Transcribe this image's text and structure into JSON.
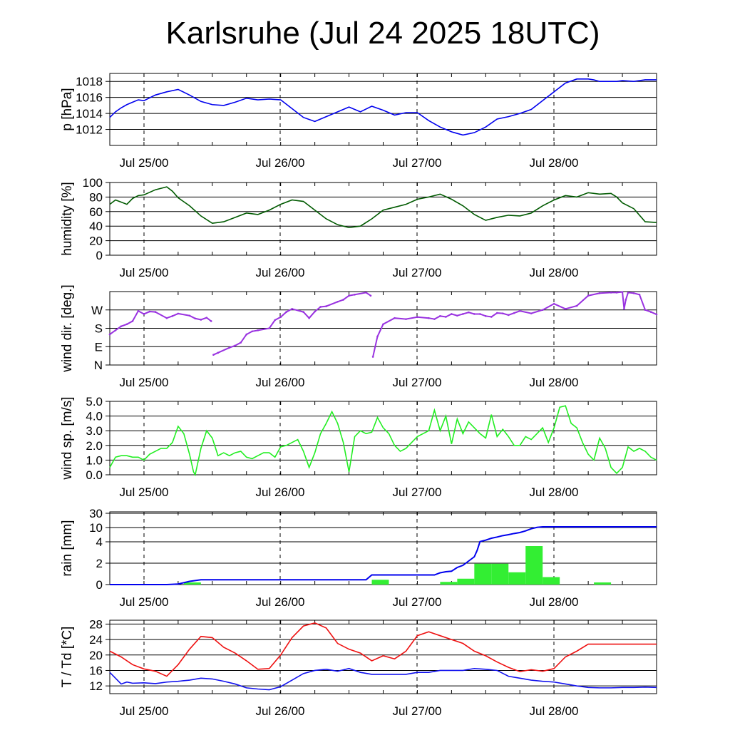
{
  "title": "Karlsruhe (Jul 24 2025 18UTC)",
  "chart_data": [
    {
      "type": "line",
      "ylabel": "p [hPa]",
      "yticks": [
        "1012",
        "1014",
        "1016",
        "1018"
      ],
      "ylim": [
        1010,
        1019
      ],
      "xticks": [
        "Jul 25/00",
        "Jul 26/00",
        "Jul 27/00",
        "Jul 28/00"
      ],
      "xlim_hours": [
        0,
        96
      ],
      "grid": "horizontal solid, vertical dashed at midnight",
      "series": [
        {
          "color": "#0000ee",
          "x_hours": [
            0,
            1,
            2,
            3,
            4,
            5,
            6,
            8,
            10,
            12,
            14,
            16,
            18,
            20,
            22,
            24,
            26,
            28,
            30,
            32,
            34,
            36,
            38,
            40,
            42,
            44,
            46,
            48,
            50,
            52,
            54,
            56,
            58,
            60,
            62,
            64,
            66,
            68,
            70,
            72,
            74,
            76,
            78,
            80,
            82,
            84,
            85,
            86,
            87,
            88,
            89,
            90,
            92,
            94,
            96
          ],
          "values": [
            1013.5,
            1014.2,
            1014.7,
            1015.1,
            1015.4,
            1015.7,
            1015.6,
            1016.3,
            1016.7,
            1017.0,
            1016.3,
            1015.5,
            1015.1,
            1015.0,
            1015.4,
            1015.9,
            1015.7,
            1015.8,
            1015.7,
            1014.6,
            1013.5,
            1013.0,
            1013.6,
            1014.2,
            1014.8,
            1014.2,
            1014.9,
            1014.4,
            1013.8,
            1014.1,
            1014.1,
            1013.1,
            1012.3,
            1011.7,
            1011.3,
            1011.6,
            1012.3,
            1013.3,
            1013.6,
            1014.0,
            1014.5,
            1015.6,
            1016.7,
            1017.8,
            1018.3,
            1018.3,
            1018.2,
            1018.0,
            1018.0,
            1018.0,
            1018.0,
            1018.1,
            1018.0,
            1018.2,
            1018.2
          ]
        }
      ]
    },
    {
      "type": "line",
      "ylabel": "humidity [%]",
      "yticks": [
        "0",
        "20",
        "40",
        "60",
        "80",
        "100"
      ],
      "ylim": [
        0,
        100
      ],
      "xticks": [
        "Jul 25/00",
        "Jul 26/00",
        "Jul 27/00",
        "Jul 28/00"
      ],
      "xlim_hours": [
        0,
        96
      ],
      "grid": "horizontal solid, vertical dashed at midnight",
      "series": [
        {
          "color": "#005a00",
          "x_hours": [
            0,
            1,
            2,
            3,
            4,
            5,
            6,
            8,
            10,
            11,
            12,
            14,
            16,
            18,
            20,
            22,
            24,
            26,
            28,
            30,
            32,
            34,
            36,
            38,
            40,
            42,
            44,
            46,
            48,
            50,
            52,
            54,
            56,
            58,
            60,
            62,
            64,
            66,
            68,
            70,
            72,
            74,
            76,
            78,
            80,
            82,
            84,
            86,
            88,
            89,
            90,
            92,
            94,
            96
          ],
          "values": [
            70,
            76,
            73,
            70,
            78,
            82,
            83,
            90,
            94,
            88,
            79,
            68,
            54,
            44,
            46,
            52,
            58,
            56,
            62,
            70,
            76,
            74,
            62,
            50,
            42,
            38,
            40,
            50,
            62,
            66,
            70,
            77,
            80,
            84,
            77,
            68,
            56,
            48,
            52,
            55,
            54,
            58,
            68,
            76,
            82,
            80,
            86,
            84,
            85,
            80,
            72,
            64,
            46,
            45
          ]
        }
      ]
    },
    {
      "type": "scatter",
      "ylabel": "wind dir. [deg.]",
      "yticks": [
        "N",
        "E",
        "S",
        "W"
      ],
      "ytick_degrees": [
        0,
        90,
        180,
        270
      ],
      "ylim": [
        0,
        360
      ],
      "xticks": [
        "Jul 25/00",
        "Jul 26/00",
        "Jul 27/00",
        "Jul 28/00"
      ],
      "xlim_hours": [
        0,
        96
      ],
      "grid": "horizontal solid, vertical dashed at midnight",
      "series": [
        {
          "color": "#9932e0",
          "x_hours": [
            0,
            1,
            2,
            3,
            4,
            5,
            6,
            7,
            8,
            10,
            11,
            12,
            14,
            15,
            16,
            17,
            17.8,
            18.2,
            19,
            21,
            22,
            23,
            24,
            25,
            26,
            28,
            29,
            30,
            31,
            32,
            34,
            35,
            36,
            37,
            38,
            40,
            41,
            42,
            43,
            45,
            45.8,
            46.2,
            47,
            48,
            50,
            52,
            54,
            56,
            57,
            58,
            59,
            60,
            61,
            62,
            63,
            64,
            65,
            66,
            67,
            68,
            69,
            70,
            71,
            72,
            74,
            76,
            78,
            80,
            82,
            84,
            86,
            88,
            89,
            90,
            90.3,
            90.6,
            91,
            92,
            93,
            94,
            95,
            96
          ],
          "values": [
            150,
            170,
            190,
            200,
            215,
            265,
            250,
            262,
            260,
            230,
            240,
            252,
            242,
            228,
            222,
            232,
            215,
            50,
            60,
            85,
            95,
            110,
            150,
            165,
            170,
            180,
            220,
            235,
            260,
            275,
            260,
            230,
            262,
            285,
            288,
            310,
            320,
            340,
            345,
            355,
            340,
            40,
            140,
            200,
            230,
            225,
            235,
            230,
            225,
            240,
            236,
            250,
            242,
            250,
            258,
            250,
            250,
            240,
            236,
            255,
            253,
            245,
            255,
            265,
            253,
            270,
            300,
            275,
            290,
            340,
            352,
            355,
            355,
            358,
            275,
            320,
            355,
            352,
            345,
            270,
            260,
            248
          ]
        }
      ]
    },
    {
      "type": "line",
      "ylabel": "wind sp. [m/s]",
      "yticks": [
        "0.0",
        "1.0",
        "2.0",
        "3.0",
        "4.0",
        "5.0"
      ],
      "ylim": [
        0,
        5
      ],
      "xticks": [
        "Jul 25/00",
        "Jul 26/00",
        "Jul 27/00",
        "Jul 28/00"
      ],
      "xlim_hours": [
        0,
        96
      ],
      "grid": "horizontal solid, vertical dashed at midnight",
      "series": [
        {
          "color": "#22ee22",
          "x_hours": [
            0,
            1,
            2,
            3,
            4,
            5,
            6,
            7,
            8,
            9,
            10,
            11,
            12,
            13,
            14,
            14.7,
            15,
            16,
            17,
            18,
            19,
            20,
            21,
            22,
            23,
            24,
            25,
            26,
            27,
            28,
            29,
            30,
            31,
            32,
            33,
            34,
            35,
            36,
            37,
            38,
            39,
            40,
            41,
            42,
            43,
            44,
            45,
            46,
            47,
            48,
            49,
            50,
            51,
            52,
            53,
            54,
            55,
            56,
            57,
            58,
            59,
            60,
            61,
            62,
            63,
            64,
            65,
            66,
            67,
            68,
            69,
            70,
            71,
            72,
            73,
            74,
            75,
            76,
            77,
            78,
            79,
            80,
            81,
            82,
            83,
            84,
            85,
            86,
            87,
            88,
            89,
            90,
            91,
            92,
            93,
            94,
            95,
            96
          ],
          "values": [
            0.5,
            1.2,
            1.3,
            1.3,
            1.2,
            1.2,
            1.0,
            1.4,
            1.6,
            1.8,
            1.8,
            2.2,
            3.3,
            2.8,
            1.4,
            0.2,
            0.0,
            1.8,
            3.0,
            2.5,
            1.3,
            1.5,
            1.3,
            1.5,
            1.6,
            1.2,
            1.1,
            1.3,
            1.5,
            1.5,
            1.2,
            1.9,
            2.0,
            2.2,
            2.4,
            1.6,
            0.5,
            1.5,
            2.8,
            3.5,
            4.3,
            3.5,
            2.2,
            0.2,
            2.6,
            3.0,
            2.8,
            2.9,
            3.9,
            3.2,
            2.8,
            2.0,
            1.6,
            1.8,
            2.2,
            2.6,
            2.8,
            3.0,
            4.4,
            3.0,
            4.0,
            2.1,
            3.8,
            2.8,
            3.6,
            3.2,
            2.8,
            2.5,
            4.1,
            2.6,
            3.1,
            2.6,
            2.0,
            2.0,
            2.6,
            2.4,
            2.8,
            3.2,
            2.2,
            3.2,
            4.6,
            4.7,
            3.5,
            3.2,
            2.2,
            1.4,
            1.0,
            2.5,
            1.8,
            0.5,
            0.1,
            0.5,
            1.9,
            1.6,
            1.8,
            1.6,
            1.2,
            1.0
          ]
        }
      ]
    },
    {
      "type": "bar+line",
      "ylabel": "rain [mm]",
      "yticks": [
        "0",
        "2",
        "4",
        "10",
        "30"
      ],
      "ylim": [
        0,
        30
      ],
      "xticks": [
        "Jul 25/00",
        "Jul 26/00",
        "Jul 27/00",
        "Jul 28/00"
      ],
      "xlim_hours": [
        0,
        96
      ],
      "grid": "horizontal solid, vertical dashed at midnight",
      "bars": {
        "color": "#33ee33",
        "bin_hours": 3,
        "x_hours_start": [
          13,
          46,
          58,
          61,
          64,
          67,
          70,
          73,
          76,
          85
        ],
        "values": [
          0.2,
          0.45,
          0.25,
          0.55,
          1.95,
          1.95,
          1.15,
          3.6,
          0.7,
          0.2
        ]
      },
      "cumulative_line": {
        "color": "#0000ee",
        "x_hours": [
          0,
          10,
          12,
          14,
          16,
          45,
          46,
          57,
          58,
          59,
          60,
          61,
          62,
          63,
          64,
          64.5,
          65,
          66,
          67,
          68,
          69,
          70,
          71,
          72,
          73,
          74,
          75,
          76,
          77,
          78,
          80,
          82,
          84,
          86,
          96
        ],
        "values": [
          0,
          0,
          0.05,
          0.3,
          0.45,
          0.45,
          0.9,
          0.9,
          1.1,
          1.2,
          1.25,
          1.6,
          1.8,
          2.2,
          2.6,
          3.2,
          4.1,
          4.7,
          5.5,
          6.0,
          6.6,
          7.0,
          7.5,
          7.9,
          8.6,
          9.5,
          10.2,
          11.0,
          11.0,
          11.0,
          11.0,
          11.0,
          11.0,
          11.0,
          11.0
        ]
      }
    },
    {
      "type": "line",
      "ylabel": "T / Td [*C]",
      "yticks": [
        "12",
        "16",
        "20",
        "24",
        "28"
      ],
      "ylim": [
        10,
        29
      ],
      "xticks": [
        "Jul 25/00",
        "Jul 26/00",
        "Jul 27/00",
        "Jul 28/00"
      ],
      "xlim_hours": [
        0,
        96
      ],
      "grid": "horizontal solid, vertical dashed at midnight",
      "series": [
        {
          "color": "#ee1111",
          "x_hours": [
            0,
            2,
            4,
            6,
            8,
            10,
            12,
            14,
            16,
            18,
            20,
            22,
            24,
            26,
            28,
            30,
            32,
            34,
            36,
            38,
            40,
            42,
            44,
            46,
            48,
            50,
            52,
            54,
            56,
            58,
            60,
            62,
            64,
            66,
            68,
            70,
            72,
            74,
            76,
            78,
            80,
            82,
            84,
            86,
            88,
            90,
            92,
            94,
            96
          ],
          "values": [
            21.0,
            19.5,
            17.5,
            16.4,
            15.8,
            14.5,
            17.5,
            21.5,
            24.8,
            24.5,
            22.0,
            20.5,
            18.5,
            16.3,
            16.5,
            20.0,
            24.5,
            27.5,
            28.3,
            27.0,
            23.0,
            21.5,
            20.5,
            18.5,
            19.8,
            19.0,
            21.0,
            25.0,
            26.0,
            25.0,
            24.0,
            23.0,
            21.0,
            19.8,
            18.2,
            16.8,
            15.7,
            16.2,
            15.8,
            16.5,
            19.5,
            21.0,
            22.8,
            22.8,
            22.8,
            22.8,
            22.8,
            22.8,
            22.8
          ]
        },
        {
          "color": "#1111ee",
          "x_hours": [
            0,
            1,
            2,
            3,
            4,
            6,
            8,
            10,
            12,
            14,
            16,
            18,
            20,
            22,
            24,
            26,
            28,
            30,
            32,
            34,
            36,
            38,
            40,
            42,
            44,
            46,
            48,
            50,
            52,
            54,
            56,
            58,
            60,
            62,
            64,
            66,
            68,
            70,
            72,
            74,
            76,
            78,
            80,
            82,
            84,
            86,
            88,
            90,
            92,
            94,
            96
          ],
          "values": [
            15.5,
            14.0,
            12.5,
            13.0,
            12.7,
            12.8,
            12.6,
            13.0,
            13.2,
            13.5,
            14.0,
            13.8,
            13.2,
            12.5,
            11.5,
            11.2,
            11.0,
            11.8,
            13.5,
            15.2,
            16.0,
            16.3,
            15.8,
            16.5,
            15.5,
            15.0,
            15.0,
            15.0,
            15.0,
            15.5,
            15.5,
            16.0,
            16.0,
            16.0,
            16.5,
            16.3,
            16.0,
            14.5,
            14.0,
            13.5,
            13.2,
            13.0,
            12.5,
            12.0,
            11.6,
            11.5,
            11.5,
            11.6,
            11.6,
            11.7,
            11.6
          ]
        }
      ]
    }
  ]
}
